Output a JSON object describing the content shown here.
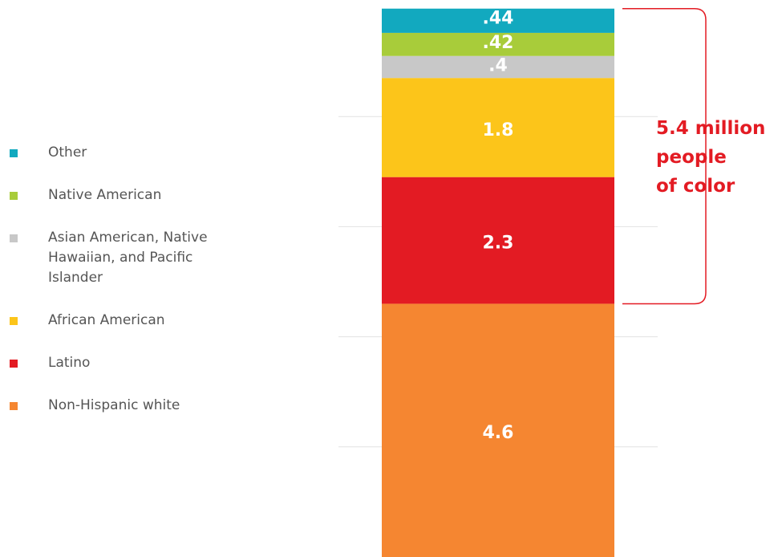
{
  "chart_data": {
    "type": "stacked_bar",
    "series": [
      {
        "name": "Other",
        "color": "#12a9bf",
        "values": [
          0.44
        ],
        "value_labels": [
          ".44"
        ]
      },
      {
        "name": "Native American",
        "color": "#a8cc3a",
        "values": [
          0.42
        ],
        "value_labels": [
          ".42"
        ]
      },
      {
        "name": "Asian American, Native Hawaiian, and Pacific Islander",
        "color": "#c8c8c8",
        "values": [
          0.4
        ],
        "value_labels": [
          ".4"
        ]
      },
      {
        "name": "African American",
        "color": "#fcc51a",
        "values": [
          1.8
        ]
      },
      {
        "name": "Latino",
        "color": "#e31b23",
        "values": [
          2.3
        ]
      },
      {
        "name": "Non-Hispanic white",
        "color": "#f58631",
        "values": [
          4.6
        ]
      }
    ],
    "ylim": [
      0,
      10
    ],
    "yticks": [
      2,
      4,
      6,
      8
    ],
    "grid": true,
    "annotation": {
      "lines": [
        "5.4 million",
        "people",
        "of color"
      ],
      "color": "#e31b23"
    }
  }
}
